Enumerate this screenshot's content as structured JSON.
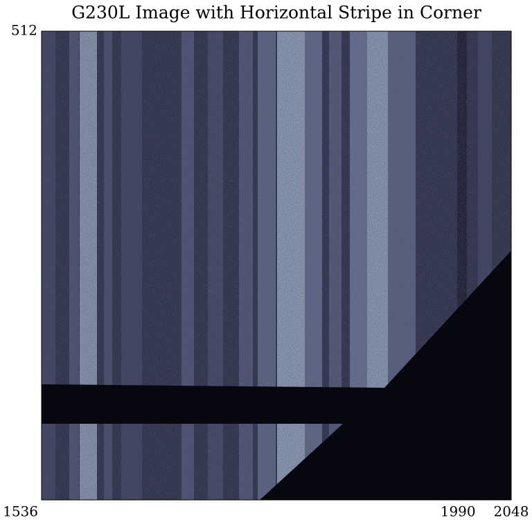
{
  "chart_data": {
    "type": "image",
    "title": "G230L Image with Horizontal Stripe in Corner",
    "xlim": [
      1536,
      2048
    ],
    "xticks": [
      1536,
      1990,
      2048
    ],
    "ylim": [
      0,
      512
    ],
    "yticks": [
      512
    ]
  }
}
